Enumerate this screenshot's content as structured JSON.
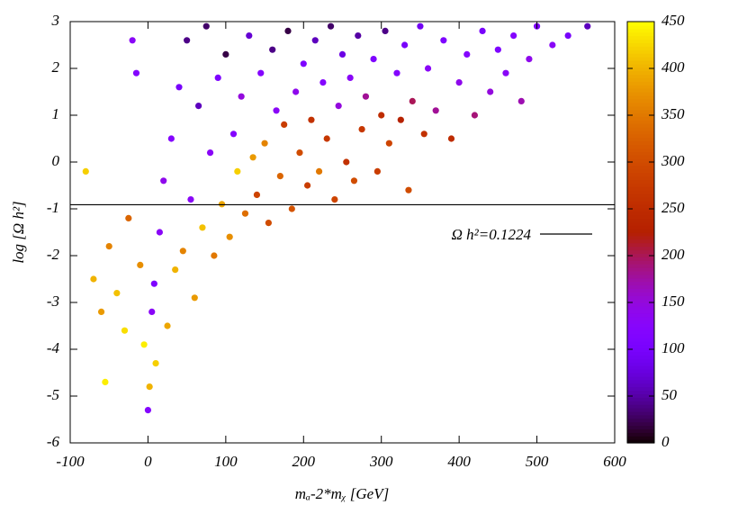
{
  "chart_data": {
    "type": "scatter",
    "xlabel": "mₐ-2*mᵪ [GeV]",
    "ylabel": "log [Ω h²]",
    "xlim": [
      -100,
      600
    ],
    "xticks": [
      -100,
      0,
      100,
      200,
      300,
      400,
      500,
      600
    ],
    "ylim": [
      -6,
      3
    ],
    "yticks": [
      -6,
      -5,
      -4,
      -3,
      -2,
      -1,
      0,
      1,
      2,
      3
    ],
    "zlim": [
      0,
      450
    ],
    "zticks": [
      0,
      50,
      100,
      150,
      200,
      250,
      300,
      350,
      400,
      450
    ],
    "palette": "gnuplot",
    "reference_lines": [
      {
        "value": -0.912,
        "label": "Ω h²=0.1224"
      }
    ],
    "x": [
      -80,
      -70,
      -60,
      -55,
      -50,
      -40,
      -30,
      -25,
      -20,
      -15,
      -10,
      -5,
      0,
      2,
      5,
      8,
      10,
      15,
      20,
      25,
      30,
      35,
      40,
      45,
      50,
      55,
      60,
      65,
      70,
      75,
      80,
      85,
      90,
      95,
      100,
      105,
      110,
      115,
      120,
      125,
      130,
      135,
      140,
      145,
      150,
      155,
      160,
      165,
      170,
      175,
      180,
      185,
      190,
      195,
      200,
      205,
      210,
      215,
      220,
      225,
      230,
      235,
      240,
      245,
      250,
      255,
      260,
      265,
      270,
      275,
      280,
      290,
      295,
      300,
      305,
      310,
      320,
      325,
      330,
      335,
      340,
      350,
      355,
      360,
      370,
      380,
      390,
      400,
      410,
      420,
      430,
      440,
      450,
      460,
      470,
      480,
      490,
      500,
      520,
      540,
      565
    ],
    "values": [
      -0.2,
      -2.5,
      -3.2,
      -4.7,
      -1.8,
      -2.8,
      -3.6,
      -1.2,
      2.6,
      1.9,
      -2.2,
      -3.9,
      -5.3,
      -4.8,
      -3.2,
      -2.6,
      -4.3,
      -1.5,
      -0.4,
      -3.5,
      0.5,
      -2.3,
      1.6,
      -1.9,
      2.6,
      -0.8,
      -2.9,
      1.2,
      -1.4,
      2.9,
      0.2,
      -2.0,
      1.8,
      -0.9,
      2.3,
      -1.6,
      0.6,
      -0.2,
      1.4,
      -1.1,
      2.7,
      0.1,
      -0.7,
      1.9,
      0.4,
      -1.3,
      2.4,
      1.1,
      -0.3,
      0.8,
      2.8,
      -1.0,
      1.5,
      0.2,
      2.1,
      -0.5,
      0.9,
      2.6,
      -0.2,
      1.7,
      0.5,
      2.9,
      -0.8,
      1.2,
      2.3,
      0.0,
      1.8,
      -0.4,
      2.7,
      0.7,
      1.4,
      2.2,
      -0.2,
      1.0,
      2.8,
      0.4,
      1.9,
      0.9,
      2.5,
      -0.6,
      1.3,
      2.9,
      0.6,
      2.0,
      1.1,
      2.6,
      0.5,
      1.7,
      2.3,
      1.0,
      2.8,
      1.5,
      2.4,
      1.9,
      2.7,
      1.3,
      2.2,
      2.9,
      2.5,
      2.7,
      2.9
    ],
    "z": [
      420,
      400,
      380,
      440,
      360,
      410,
      430,
      330,
      130,
      120,
      370,
      440,
      120,
      400,
      130,
      110,
      420,
      130,
      140,
      390,
      120,
      400,
      100,
      360,
      40,
      130,
      380,
      60,
      410,
      30,
      130,
      350,
      110,
      390,
      20,
      370,
      120,
      420,
      150,
      340,
      70,
      380,
      290,
      120,
      360,
      300,
      40,
      130,
      330,
      280,
      20,
      310,
      140,
      300,
      110,
      280,
      260,
      60,
      350,
      120,
      270,
      30,
      290,
      150,
      80,
      260,
      130,
      300,
      50,
      270,
      180,
      110,
      280,
      250,
      40,
      290,
      120,
      230,
      100,
      300,
      200,
      90,
      260,
      130,
      180,
      110,
      250,
      140,
      120,
      190,
      100,
      150,
      110,
      130,
      120,
      170,
      140,
      110,
      130,
      100,
      60
    ]
  }
}
